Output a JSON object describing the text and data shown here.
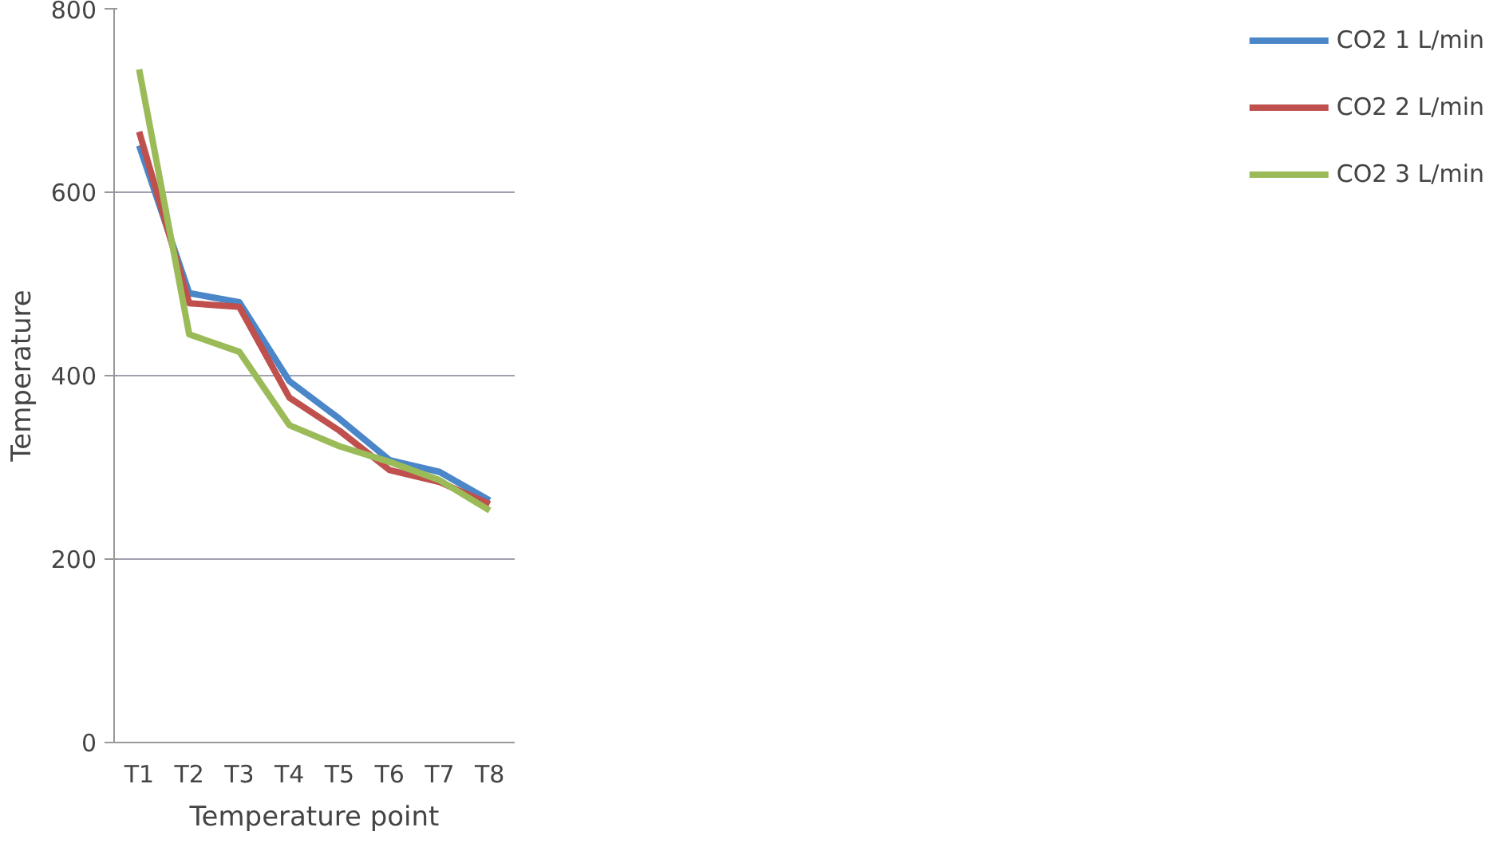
{
  "chart_data": {
    "type": "line",
    "xlabel": "Temperature point",
    "ylabel": "Temperature",
    "categories": [
      "T1",
      "T2",
      "T3",
      "T4",
      "T5",
      "T6",
      "T7",
      "T8"
    ],
    "series": [
      {
        "name": "CO2 1 L/min",
        "color": "#4a86c8",
        "values": [
          651,
          490,
          480,
          394,
          353,
          308,
          295,
          264
        ]
      },
      {
        "name": "CO2 2 L/min",
        "color": "#c0504d",
        "values": [
          666,
          479,
          475,
          376,
          340,
          297,
          284,
          260
        ]
      },
      {
        "name": "CO2 3 L/min",
        "color": "#9bbb59",
        "values": [
          734,
          445,
          426,
          346,
          323,
          306,
          286,
          253
        ]
      }
    ],
    "ylim": [
      0,
      800
    ],
    "yticks": [
      0,
      200,
      400,
      600,
      800
    ],
    "grid": "y",
    "legend": "right",
    "marker": "none"
  }
}
